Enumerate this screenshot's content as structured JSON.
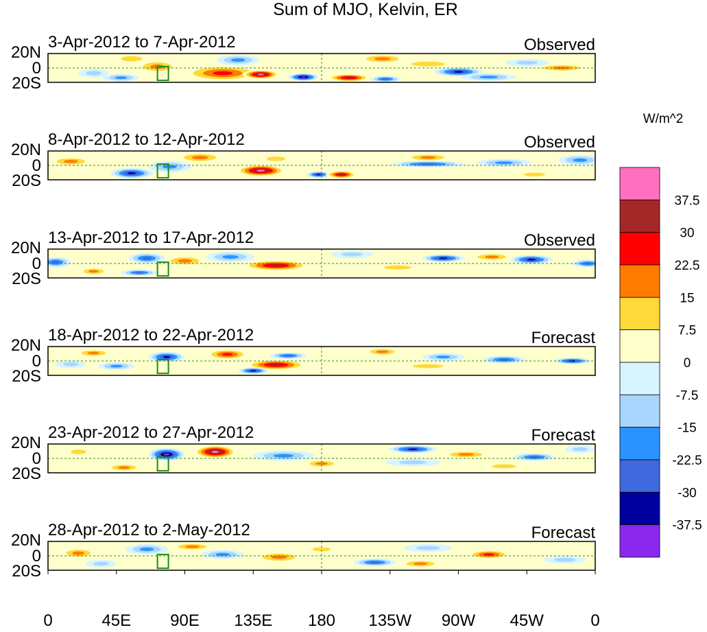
{
  "chart_data": {
    "type": "heatmap",
    "title": "Sum of MJO, Kelvin, ER",
    "units": "W/m^2",
    "x_ticks": [
      "0",
      "45E",
      "90E",
      "135E",
      "180",
      "135W",
      "90W",
      "45W",
      "0"
    ],
    "y_ticks": [
      "20N",
      "0",
      "20S"
    ],
    "colorbar": {
      "levels": [
        "37.5",
        "30",
        "22.5",
        "15",
        "7.5",
        "0",
        "-7.5",
        "-15",
        "-22.5",
        "-30",
        "-37.5"
      ],
      "colors": [
        "#ff70bf",
        "#a52828",
        "#ff0000",
        "#ff7a00",
        "#ffd93a",
        "#ffffcc",
        "#d7f4ff",
        "#a8d6ff",
        "#2a93ff",
        "#3f69dc",
        "#00009e",
        "#8a28ee"
      ]
    },
    "panels": [
      {
        "date_range": "3-Apr-2012 to 7-Apr-2012",
        "status": "Observed",
        "anomalies": [
          {
            "lon": 72,
            "lat": 2,
            "w": 14,
            "h": 10,
            "v": 18
          },
          {
            "lon": 30,
            "lat": -8,
            "w": 10,
            "h": 7,
            "v": -14
          },
          {
            "lon": 55,
            "lat": 14,
            "w": 14,
            "h": 8,
            "v": 12
          },
          {
            "lon": 48,
            "lat": -15,
            "w": 12,
            "h": 6,
            "v": -20
          },
          {
            "lon": 115,
            "lat": -8,
            "w": 26,
            "h": 12,
            "v": 24
          },
          {
            "lon": 140,
            "lat": -10,
            "w": 12,
            "h": 7,
            "v": 40
          },
          {
            "lon": 125,
            "lat": 12,
            "w": 14,
            "h": 8,
            "v": -18
          },
          {
            "lon": 168,
            "lat": -14,
            "w": 10,
            "h": 6,
            "v": -40
          },
          {
            "lon": 198,
            "lat": -15,
            "w": 14,
            "h": 6,
            "v": 32
          },
          {
            "lon": 222,
            "lat": -17,
            "w": 10,
            "h": 5,
            "v": -28
          },
          {
            "lon": 250,
            "lat": 6,
            "w": 22,
            "h": 7,
            "v": 14
          },
          {
            "lon": 270,
            "lat": -6,
            "w": 16,
            "h": 7,
            "v": -32
          },
          {
            "lon": 220,
            "lat": 14,
            "w": 16,
            "h": 7,
            "v": 16
          },
          {
            "lon": 338,
            "lat": 0,
            "w": 18,
            "h": 6,
            "v": 20
          },
          {
            "lon": 290,
            "lat": -14,
            "w": 18,
            "h": 6,
            "v": -16
          },
          {
            "lon": 315,
            "lat": 8,
            "w": 14,
            "h": 6,
            "v": -10
          }
        ]
      },
      {
        "date_range": "8-Apr-2012 to 12-Apr-2012",
        "status": "Observed",
        "anomalies": [
          {
            "lon": 55,
            "lat": -12,
            "w": 14,
            "h": 8,
            "v": -34
          },
          {
            "lon": 80,
            "lat": -2,
            "w": 14,
            "h": 9,
            "v": -22
          },
          {
            "lon": 15,
            "lat": 6,
            "w": 14,
            "h": 7,
            "v": 16
          },
          {
            "lon": 100,
            "lat": 12,
            "w": 16,
            "h": 8,
            "v": 18
          },
          {
            "lon": 140,
            "lat": -8,
            "w": 16,
            "h": 9,
            "v": 40
          },
          {
            "lon": 178,
            "lat": -14,
            "w": 8,
            "h": 5,
            "v": -34
          },
          {
            "lon": 193,
            "lat": -14,
            "w": 10,
            "h": 6,
            "v": 32
          },
          {
            "lon": 150,
            "lat": 10,
            "w": 12,
            "h": 7,
            "v": 14
          },
          {
            "lon": 250,
            "lat": 12,
            "w": 16,
            "h": 6,
            "v": 16
          },
          {
            "lon": 250,
            "lat": 2,
            "w": 24,
            "h": 5,
            "v": -26
          },
          {
            "lon": 300,
            "lat": 4,
            "w": 18,
            "h": 6,
            "v": -16
          },
          {
            "lon": 350,
            "lat": 8,
            "w": 14,
            "h": 8,
            "v": -18
          },
          {
            "lon": 320,
            "lat": -14,
            "w": 14,
            "h": 6,
            "v": 12
          }
        ]
      },
      {
        "date_range": "13-Apr-2012 to 17-Apr-2012",
        "status": "Observed",
        "anomalies": [
          {
            "lon": 65,
            "lat": 8,
            "w": 12,
            "h": 8,
            "v": -28
          },
          {
            "lon": 30,
            "lat": -12,
            "w": 10,
            "h": 6,
            "v": 22
          },
          {
            "lon": 90,
            "lat": 4,
            "w": 14,
            "h": 8,
            "v": 18
          },
          {
            "lon": 120,
            "lat": 10,
            "w": 16,
            "h": 8,
            "v": -20
          },
          {
            "lon": 150,
            "lat": -3,
            "w": 22,
            "h": 8,
            "v": 32
          },
          {
            "lon": 5,
            "lat": 2,
            "w": 10,
            "h": 8,
            "v": -30
          },
          {
            "lon": 60,
            "lat": -14,
            "w": 12,
            "h": 5,
            "v": -24
          },
          {
            "lon": 260,
            "lat": 8,
            "w": 14,
            "h": 6,
            "v": -34
          },
          {
            "lon": 292,
            "lat": 10,
            "w": 14,
            "h": 6,
            "v": 22
          },
          {
            "lon": 318,
            "lat": 6,
            "w": 14,
            "h": 7,
            "v": -32
          },
          {
            "lon": 355,
            "lat": 0,
            "w": 10,
            "h": 6,
            "v": -30
          },
          {
            "lon": 230,
            "lat": -6,
            "w": 18,
            "h": 6,
            "v": 14
          },
          {
            "lon": 200,
            "lat": 14,
            "w": 14,
            "h": 6,
            "v": -12
          }
        ]
      },
      {
        "date_range": "18-Apr-2012 to 22-Apr-2012",
        "status": "Forecast",
        "anomalies": [
          {
            "lon": 78,
            "lat": 6,
            "w": 12,
            "h": 8,
            "v": -34
          },
          {
            "lon": 118,
            "lat": 10,
            "w": 14,
            "h": 8,
            "v": 28
          },
          {
            "lon": 150,
            "lat": -6,
            "w": 20,
            "h": 8,
            "v": 32
          },
          {
            "lon": 135,
            "lat": -15,
            "w": 10,
            "h": 5,
            "v": -32
          },
          {
            "lon": 158,
            "lat": 8,
            "w": 12,
            "h": 5,
            "v": -30
          },
          {
            "lon": 45,
            "lat": -8,
            "w": 12,
            "h": 6,
            "v": -18
          },
          {
            "lon": 30,
            "lat": 12,
            "w": 12,
            "h": 6,
            "v": 18
          },
          {
            "lon": 15,
            "lat": -5,
            "w": 10,
            "h": 6,
            "v": -10
          },
          {
            "lon": 260,
            "lat": 6,
            "w": 14,
            "h": 6,
            "v": -20
          },
          {
            "lon": 250,
            "lat": -8,
            "w": 20,
            "h": 6,
            "v": 14
          },
          {
            "lon": 300,
            "lat": 2,
            "w": 14,
            "h": 6,
            "v": -26
          },
          {
            "lon": 345,
            "lat": 0,
            "w": 12,
            "h": 5,
            "v": -36
          },
          {
            "lon": 220,
            "lat": 14,
            "w": 12,
            "h": 6,
            "v": 16
          }
        ]
      },
      {
        "date_range": "23-Apr-2012 to 27-Apr-2012",
        "status": "Forecast",
        "anomalies": [
          {
            "lon": 78,
            "lat": 6,
            "w": 12,
            "h": 10,
            "v": -40
          },
          {
            "lon": 110,
            "lat": 10,
            "w": 14,
            "h": 10,
            "v": 40
          },
          {
            "lon": 50,
            "lat": -14,
            "w": 12,
            "h": 6,
            "v": 22
          },
          {
            "lon": 20,
            "lat": 10,
            "w": 10,
            "h": 7,
            "v": 14
          },
          {
            "lon": 155,
            "lat": 4,
            "w": 20,
            "h": 8,
            "v": -16
          },
          {
            "lon": 180,
            "lat": -8,
            "w": 12,
            "h": 6,
            "v": 20
          },
          {
            "lon": 240,
            "lat": 14,
            "w": 16,
            "h": 6,
            "v": -32
          },
          {
            "lon": 275,
            "lat": 6,
            "w": 16,
            "h": 6,
            "v": 18
          },
          {
            "lon": 240,
            "lat": -6,
            "w": 18,
            "h": 6,
            "v": -14
          },
          {
            "lon": 320,
            "lat": 2,
            "w": 14,
            "h": 6,
            "v": -24
          },
          {
            "lon": 300,
            "lat": -12,
            "w": 16,
            "h": 6,
            "v": 12
          },
          {
            "lon": 350,
            "lat": 14,
            "w": 10,
            "h": 6,
            "v": -12
          }
        ]
      },
      {
        "date_range": "28-Apr-2012 to 2-May-2012",
        "status": "Forecast",
        "anomalies": [
          {
            "lon": 20,
            "lat": 4,
            "w": 12,
            "h": 8,
            "v": 16
          },
          {
            "lon": 65,
            "lat": 10,
            "w": 14,
            "h": 8,
            "v": -20
          },
          {
            "lon": 95,
            "lat": 14,
            "w": 14,
            "h": 6,
            "v": 16
          },
          {
            "lon": 115,
            "lat": 2,
            "w": 14,
            "h": 7,
            "v": -16
          },
          {
            "lon": 152,
            "lat": -2,
            "w": 16,
            "h": 8,
            "v": 18
          },
          {
            "lon": 215,
            "lat": -10,
            "w": 14,
            "h": 6,
            "v": -26
          },
          {
            "lon": 245,
            "lat": -12,
            "w": 14,
            "h": 6,
            "v": 22
          },
          {
            "lon": 290,
            "lat": 2,
            "w": 14,
            "h": 7,
            "v": 30
          },
          {
            "lon": 250,
            "lat": 12,
            "w": 16,
            "h": 6,
            "v": -14
          },
          {
            "lon": 180,
            "lat": 10,
            "w": 12,
            "h": 6,
            "v": 14
          },
          {
            "lon": 340,
            "lat": -6,
            "w": 14,
            "h": 6,
            "v": -12
          },
          {
            "lon": 35,
            "lat": -12,
            "w": 10,
            "h": 6,
            "v": -12
          }
        ]
      }
    ]
  }
}
